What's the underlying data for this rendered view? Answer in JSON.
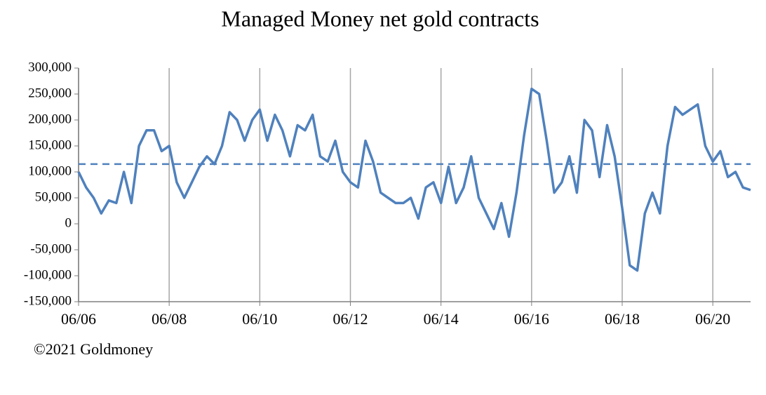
{
  "chart_data": {
    "type": "line",
    "title": "Managed Money net gold contracts",
    "source": "©2021 Goldmoney",
    "x": [
      "2006-06",
      "2006-08",
      "2006-10",
      "2006-12",
      "2007-02",
      "2007-04",
      "2007-06",
      "2007-08",
      "2007-10",
      "2007-12",
      "2008-02",
      "2008-04",
      "2008-06",
      "2008-08",
      "2008-10",
      "2008-12",
      "2009-02",
      "2009-04",
      "2009-06",
      "2009-08",
      "2009-10",
      "2009-12",
      "2010-02",
      "2010-04",
      "2010-06",
      "2010-08",
      "2010-10",
      "2010-12",
      "2011-02",
      "2011-04",
      "2011-06",
      "2011-08",
      "2011-10",
      "2011-12",
      "2012-02",
      "2012-04",
      "2012-06",
      "2012-08",
      "2012-10",
      "2012-12",
      "2013-02",
      "2013-04",
      "2013-06",
      "2013-08",
      "2013-10",
      "2013-12",
      "2014-02",
      "2014-04",
      "2014-06",
      "2014-08",
      "2014-10",
      "2014-12",
      "2015-02",
      "2015-04",
      "2015-06",
      "2015-08",
      "2015-10",
      "2015-12",
      "2016-02",
      "2016-04",
      "2016-06",
      "2016-08",
      "2016-10",
      "2016-12",
      "2017-02",
      "2017-04",
      "2017-06",
      "2017-08",
      "2017-10",
      "2017-12",
      "2018-02",
      "2018-04",
      "2018-06",
      "2018-08",
      "2018-10",
      "2018-12",
      "2019-02",
      "2019-04",
      "2019-06",
      "2019-08",
      "2019-10",
      "2019-12",
      "2020-02",
      "2020-04",
      "2020-06",
      "2020-08",
      "2020-10",
      "2020-12",
      "2021-02",
      "2021-04"
    ],
    "series": [
      {
        "color": "#4f81bd",
        "values": [
          100000,
          70000,
          50000,
          20000,
          45000,
          40000,
          100000,
          40000,
          150000,
          180000,
          180000,
          140000,
          150000,
          80000,
          50000,
          80000,
          110000,
          130000,
          115000,
          150000,
          215000,
          200000,
          160000,
          200000,
          220000,
          160000,
          210000,
          180000,
          130000,
          190000,
          180000,
          210000,
          130000,
          120000,
          160000,
          100000,
          80000,
          70000,
          160000,
          120000,
          60000,
          50000,
          40000,
          40000,
          50000,
          10000,
          70000,
          80000,
          40000,
          110000,
          40000,
          70000,
          130000,
          50000,
          20000,
          -10000,
          40000,
          -25000,
          60000,
          170000,
          260000,
          250000,
          160000,
          60000,
          80000,
          130000,
          60000,
          200000,
          180000,
          90000,
          190000,
          130000,
          30000,
          -80000,
          -90000,
          20000,
          60000,
          20000,
          150000,
          225000,
          210000,
          220000,
          230000,
          150000,
          120000,
          140000,
          90000,
          100000,
          70000,
          65000
        ]
      }
    ],
    "reference_line": {
      "value": 115000,
      "color": "#4f81bd",
      "dashed": true
    },
    "xlim": [
      "2006-06",
      "2021-04"
    ],
    "xticks": [
      {
        "value": "2006-06",
        "label": "06/06"
      },
      {
        "value": "2008-06",
        "label": "06/08"
      },
      {
        "value": "2010-06",
        "label": "06/10"
      },
      {
        "value": "2012-06",
        "label": "06/12"
      },
      {
        "value": "2014-06",
        "label": "06/14"
      },
      {
        "value": "2016-06",
        "label": "06/16"
      },
      {
        "value": "2018-06",
        "label": "06/18"
      },
      {
        "value": "2020-06",
        "label": "06/20"
      }
    ],
    "ylim": [
      -150000,
      300000
    ],
    "yticks": [
      {
        "value": -150000,
        "label": "-150,000"
      },
      {
        "value": -100000,
        "label": "-100,000"
      },
      {
        "value": -50000,
        "label": "-50,000"
      },
      0,
      {
        "value": 50000,
        "label": "50,000"
      },
      {
        "value": 100000,
        "label": "100,000"
      },
      {
        "value": 150000,
        "label": "150,000"
      },
      {
        "value": 200000,
        "label": "200,000"
      },
      {
        "value": 250000,
        "label": "250,000"
      },
      {
        "value": 300000,
        "label": "300,000"
      }
    ],
    "grid": true
  }
}
